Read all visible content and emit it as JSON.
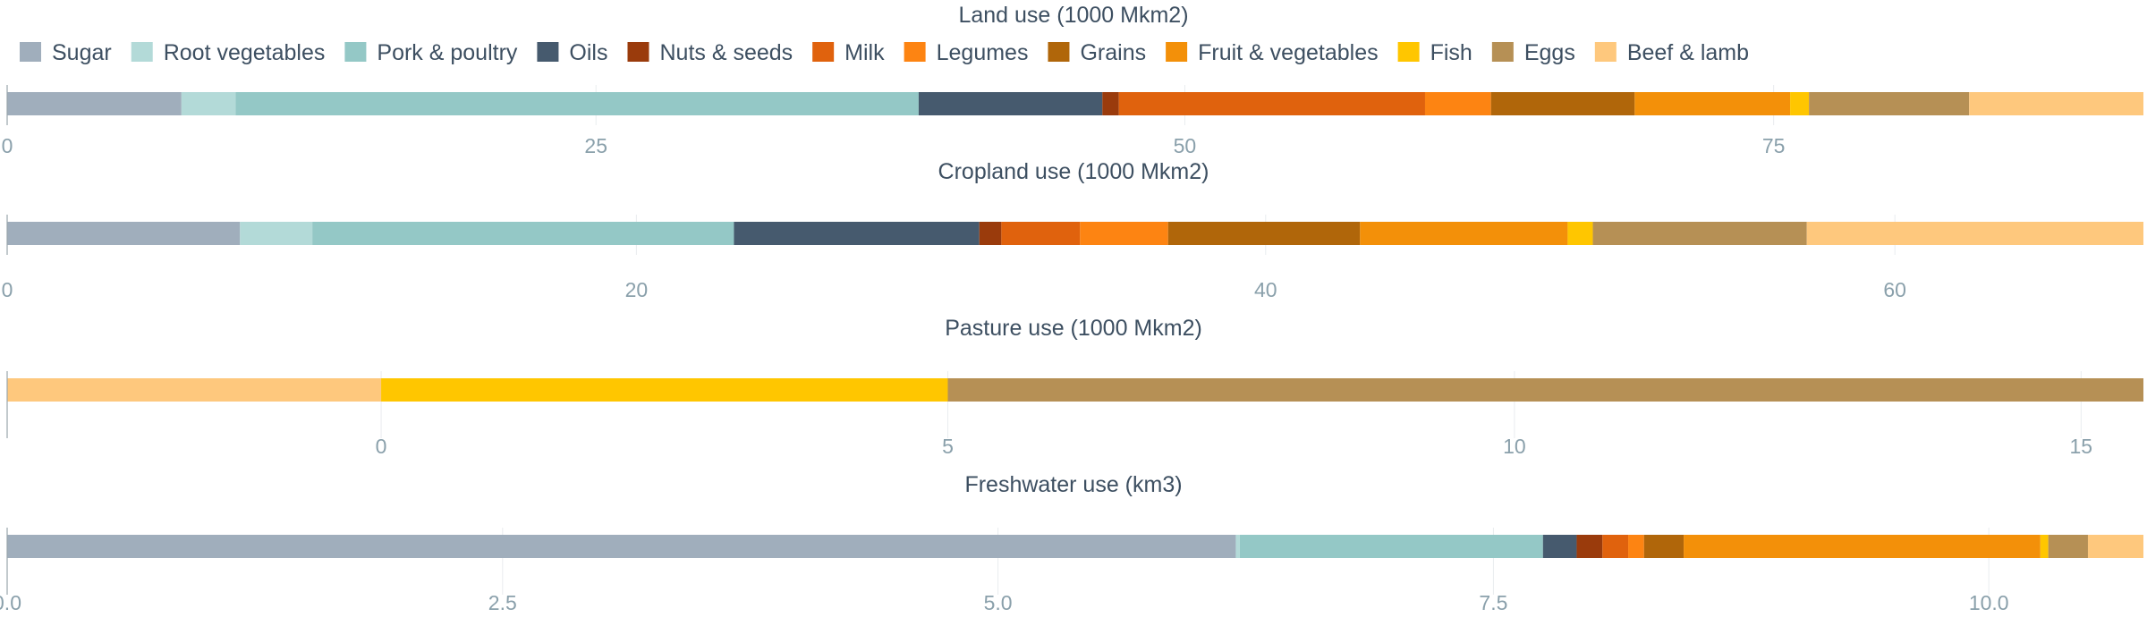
{
  "legend": [
    {
      "label": "Sugar",
      "color": "#a0aebc"
    },
    {
      "label": "Root vegetables",
      "color": "#b3dad8"
    },
    {
      "label": "Pork & poultry",
      "color": "#94c8c6"
    },
    {
      "label": "Oils",
      "color": "#465a6e"
    },
    {
      "label": "Nuts & seeds",
      "color": "#9a3b0c"
    },
    {
      "label": "Milk",
      "color": "#e0620d"
    },
    {
      "label": "Legumes",
      "color": "#fd8412"
    },
    {
      "label": "Grains",
      "color": "#b0660a"
    },
    {
      "label": "Fruit & vegetables",
      "color": "#f39009"
    },
    {
      "label": "Fish",
      "color": "#ffc600"
    },
    {
      "label": "Eggs",
      "color": "#b69055"
    },
    {
      "label": "Beef & lamb",
      "color": "#fec87d"
    }
  ],
  "chart_data": [
    {
      "type": "bar",
      "orientation": "horizontal",
      "stacked": true,
      "title": "Land use (1000 Mkm2)",
      "xlim": [
        0,
        90.7
      ],
      "ticks": [
        0,
        25,
        50,
        75
      ],
      "tick_labels": [
        "0",
        "25",
        "50",
        "75"
      ],
      "grid": true,
      "segments": [
        {
          "name": "Sugar",
          "value": 7.4
        },
        {
          "name": "Root vegetables",
          "value": 2.3
        },
        {
          "name": "Pork & poultry",
          "value": 29.0
        },
        {
          "name": "Oils",
          "value": 7.8
        },
        {
          "name": "Nuts & seeds",
          "value": 0.7
        },
        {
          "name": "Milk",
          "value": 13.0
        },
        {
          "name": "Legumes",
          "value": 2.8
        },
        {
          "name": "Grains",
          "value": 6.1
        },
        {
          "name": "Fruit & vegetables",
          "value": 6.6
        },
        {
          "name": "Fish",
          "value": 0.8
        },
        {
          "name": "Eggs",
          "value": 6.8
        },
        {
          "name": "Beef & lamb",
          "value": 7.4
        }
      ]
    },
    {
      "type": "bar",
      "orientation": "horizontal",
      "stacked": true,
      "title": "Cropland use (1000 Mkm2)",
      "xlim": [
        0,
        67.9
      ],
      "ticks": [
        0,
        20,
        40,
        60
      ],
      "tick_labels": [
        "0",
        "20",
        "40",
        "60"
      ],
      "grid": true,
      "segments": [
        {
          "name": "Sugar",
          "value": 7.4
        },
        {
          "name": "Root vegetables",
          "value": 2.3
        },
        {
          "name": "Pork & poultry",
          "value": 13.4
        },
        {
          "name": "Oils",
          "value": 7.8
        },
        {
          "name": "Nuts & seeds",
          "value": 0.7
        },
        {
          "name": "Milk",
          "value": 2.5
        },
        {
          "name": "Legumes",
          "value": 2.8
        },
        {
          "name": "Grains",
          "value": 6.1
        },
        {
          "name": "Fruit & vegetables",
          "value": 6.6
        },
        {
          "name": "Fish",
          "value": 0.8
        },
        {
          "name": "Eggs",
          "value": 6.8
        },
        {
          "name": "Beef & lamb",
          "value": 10.7
        }
      ]
    },
    {
      "type": "bar",
      "orientation": "horizontal",
      "stacked": true,
      "title": "Pasture use (1000 Mkm2)",
      "xlim": [
        -3.3,
        15.55
      ],
      "ticks": [
        0,
        5,
        10,
        15
      ],
      "tick_labels": [
        "0",
        "5",
        "10",
        "15"
      ],
      "grid": true,
      "segments": [
        {
          "name": "Beef & lamb",
          "value": -3.3
        },
        {
          "name": "Fish",
          "value": 5.0
        },
        {
          "name": "Eggs",
          "value": 10.55
        }
      ]
    },
    {
      "type": "bar",
      "orientation": "horizontal",
      "stacked": true,
      "title": "Freshwater use (km3)",
      "xlim": [
        0,
        10.78
      ],
      "ticks": [
        0,
        2.5,
        5,
        7.5,
        10
      ],
      "tick_labels": [
        "0.0",
        "2.5",
        "5.0",
        "7.5",
        "10.0"
      ],
      "grid": true,
      "segments": [
        {
          "name": "Sugar",
          "value": 6.2
        },
        {
          "name": "Root vegetables",
          "value": 0.02
        },
        {
          "name": "Pork & poultry",
          "value": 1.53
        },
        {
          "name": "Oils",
          "value": 0.17
        },
        {
          "name": "Nuts & seeds",
          "value": 0.13
        },
        {
          "name": "Milk",
          "value": 0.13
        },
        {
          "name": "Legumes",
          "value": 0.08
        },
        {
          "name": "Grains",
          "value": 0.2
        },
        {
          "name": "Fruit & vegetables",
          "value": 1.8
        },
        {
          "name": "Fish",
          "value": 0.04
        },
        {
          "name": "Eggs",
          "value": 0.2
        },
        {
          "name": "Beef & lamb",
          "value": 0.28
        }
      ]
    }
  ]
}
